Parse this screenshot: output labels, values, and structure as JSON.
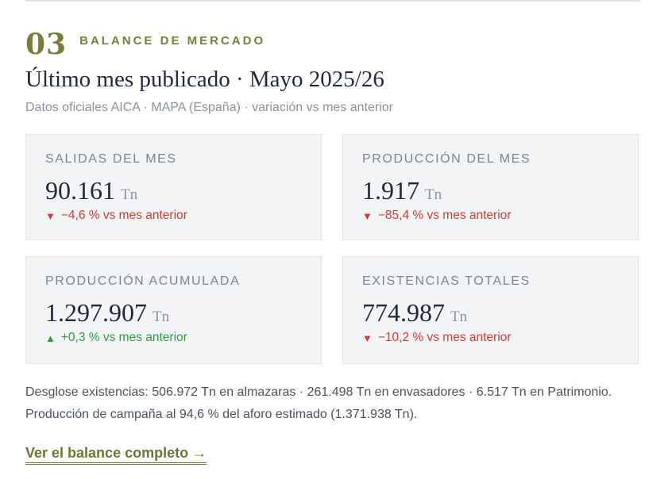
{
  "section": {
    "number": "03",
    "label": "BALANCE DE MERCADO",
    "title": "Último mes publicado · Mayo 2025/26",
    "subtitle": "Datos oficiales AICA · MAPA (España) · variación vs mes anterior"
  },
  "cards": [
    {
      "label": "SALIDAS DEL MES",
      "value": "90.161",
      "unit": "Tn",
      "arrow": "▼",
      "change": "−4,6 % vs mes anterior",
      "trend": "down"
    },
    {
      "label": "PRODUCCIÓN DEL MES",
      "value": "1.917",
      "unit": "Tn",
      "arrow": "▼",
      "change": "−85,4 % vs mes anterior",
      "trend": "down"
    },
    {
      "label": "PRODUCCIÓN ACUMULADA",
      "value": "1.297.907",
      "unit": "Tn",
      "arrow": "▲",
      "change": "+0,3 % vs mes anterior",
      "trend": "up"
    },
    {
      "label": "EXISTENCIAS TOTALES",
      "value": "774.987",
      "unit": "Tn",
      "arrow": "▼",
      "change": "−10,2 % vs mes anterior",
      "trend": "down"
    }
  ],
  "note": "Desglose existencias: 506.972 Tn en almazaras · 261.498 Tn en envasadores · 6.517 Tn en Patrimonio. Producción de campaña al 94,6 % del aforo estimado (1.371.938 Tn).",
  "link_label": "Ver el balance completo →",
  "colors": {
    "accent": "#7a7d3a",
    "down": "#d33c33",
    "up": "#2e9e46",
    "card_bg": "#f3f4f6"
  }
}
